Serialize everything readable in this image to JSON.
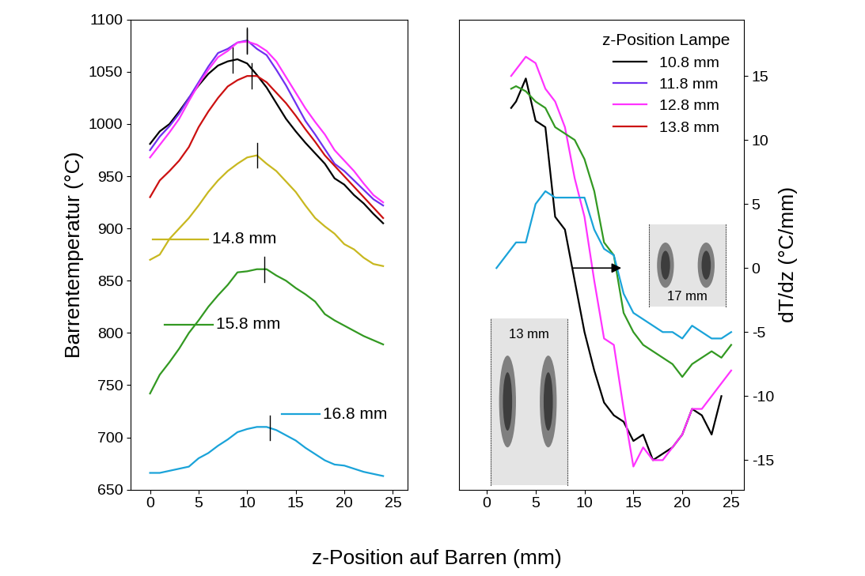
{
  "chart_data": [
    {
      "type": "line",
      "y_label": "Barrentemperatur (°C)",
      "x_label": "z-Position auf Barren (mm)",
      "legend_title": "z-Position Lampe",
      "xlim": [
        -2,
        26.5
      ],
      "ylim": [
        650,
        1100
      ],
      "xticks": [
        0,
        5,
        10,
        15,
        20,
        25
      ],
      "yticks": [
        650,
        700,
        750,
        800,
        850,
        900,
        950,
        1000,
        1050,
        1100
      ],
      "x": [
        0,
        1,
        2,
        3,
        4,
        5,
        6,
        7,
        8,
        9,
        10,
        11,
        12,
        13,
        14,
        15,
        16,
        17,
        18,
        19,
        20,
        21,
        22,
        23,
        24
      ],
      "series": [
        {
          "name": "10.8 mm",
          "color": "#000000",
          "peak": 8.5,
          "values": [
            981,
            993,
            1000,
            1012,
            1025,
            1037,
            1048,
            1056,
            1060,
            1062,
            1058,
            1047,
            1035,
            1020,
            1005,
            993,
            982,
            972,
            962,
            948,
            942,
            932,
            924,
            914,
            905
          ]
        },
        {
          "name": "11.8 mm",
          "color": "#7030f0",
          "peak": 10,
          "values": [
            975,
            988,
            998,
            1010,
            1025,
            1040,
            1055,
            1068,
            1072,
            1078,
            1080,
            1072,
            1066,
            1052,
            1037,
            1020,
            1003,
            990,
            976,
            962,
            955,
            946,
            937,
            928,
            922
          ]
        },
        {
          "name": "12.8 mm",
          "color": "#ff33ff",
          "peak": 10,
          "values": [
            968,
            980,
            992,
            1005,
            1022,
            1038,
            1052,
            1064,
            1070,
            1078,
            1079,
            1076,
            1070,
            1060,
            1045,
            1030,
            1015,
            1002,
            990,
            975,
            965,
            955,
            943,
            932,
            925
          ]
        },
        {
          "name": "13.8 mm",
          "color": "#cc1111",
          "peak": 10.5,
          "values": [
            930,
            946,
            955,
            965,
            978,
            997,
            1012,
            1025,
            1036,
            1042,
            1046,
            1046,
            1040,
            1030,
            1020,
            1008,
            995,
            983,
            970,
            960,
            950,
            940,
            930,
            920,
            910
          ]
        }
      ],
      "labeled_series": [
        {
          "name": "14.8 mm",
          "color": "#c8b820",
          "peak": 11,
          "values": [
            870,
            875,
            890,
            900,
            910,
            922,
            935,
            946,
            955,
            962,
            968,
            970,
            962,
            955,
            945,
            935,
            922,
            910,
            902,
            895,
            885,
            880,
            872,
            866,
            864
          ]
        },
        {
          "name": "15.8 mm",
          "color": "#339922",
          "peak": 11.8,
          "values": [
            742,
            760,
            772,
            785,
            800,
            812,
            825,
            836,
            846,
            858,
            859,
            861,
            861,
            855,
            850,
            843,
            837,
            830,
            818,
            812,
            807,
            802,
            797,
            793,
            789
          ]
        },
        {
          "name": "16.8 mm",
          "color": "#1aa3d9",
          "peak": 12.3,
          "values": [
            666,
            666,
            668,
            670,
            672,
            680,
            685,
            692,
            698,
            705,
            708,
            710,
            710,
            707,
            702,
            697,
            690,
            684,
            678,
            674,
            673,
            670,
            667,
            665,
            663
          ]
        }
      ]
    },
    {
      "type": "line",
      "y_label": "dT/dz (°C/mm)",
      "legend": "upper right",
      "xlim": [
        -2.8,
        26.3
      ],
      "ylim": [
        -17.3,
        19.4
      ],
      "xticks": [
        0,
        5,
        10,
        15,
        20,
        25
      ],
      "yticks": [
        -15,
        -10,
        -5,
        0,
        5,
        10,
        15
      ],
      "arrow": {
        "x": [
          8.5,
          14
        ],
        "y": 0
      },
      "insets": [
        "17 mm",
        "13 mm"
      ],
      "series": [
        {
          "color": "#000000",
          "x": [
            2.5,
            3,
            4,
            5,
            6,
            7,
            8,
            9,
            10,
            11,
            12,
            13,
            14,
            15,
            16,
            17,
            18,
            19,
            20,
            21,
            22,
            23,
            24
          ],
          "values": [
            12.5,
            13,
            14.8,
            11.5,
            11,
            4,
            3,
            -1,
            -5,
            -8,
            -10.5,
            -11.5,
            -12,
            -13.5,
            -13,
            -15,
            -14.5,
            -14,
            -13,
            -11,
            -11.5,
            -13,
            -10
          ]
        },
        {
          "color": "#ff33ff",
          "x": [
            2.5,
            3,
            4,
            5,
            6,
            7,
            8,
            9,
            10,
            11,
            12,
            13,
            14,
            15,
            16,
            17,
            18,
            19,
            20,
            21,
            22,
            23,
            24,
            25
          ],
          "values": [
            15,
            15.5,
            16.5,
            16,
            14,
            13,
            11,
            7,
            4,
            -1,
            -5.5,
            -6,
            -11,
            -15.5,
            -14,
            -15,
            -15,
            -14,
            -13,
            -11,
            -11,
            -10,
            -9,
            -8
          ]
        },
        {
          "color": "#339922",
          "x": [
            2.5,
            3,
            4,
            5,
            6,
            7,
            8,
            9,
            10,
            11,
            12,
            13,
            14,
            15,
            16,
            17,
            18,
            19,
            20,
            21,
            22,
            23,
            24,
            25
          ],
          "values": [
            14,
            14.2,
            13.8,
            13,
            12.5,
            11,
            10.5,
            10,
            8.5,
            6,
            2,
            1,
            -3.5,
            -5,
            -6,
            -6.5,
            -7,
            -7.5,
            -8.5,
            -7.5,
            -7,
            -6.5,
            -7,
            -6
          ]
        },
        {
          "color": "#1aa3d9",
          "x": [
            1,
            2,
            3,
            4,
            5,
            6,
            7,
            8,
            9,
            10,
            11,
            12,
            13,
            14,
            15,
            16,
            17,
            18,
            19,
            20,
            21,
            22,
            23,
            24,
            25
          ],
          "values": [
            0,
            1,
            2,
            2,
            5,
            6,
            5.5,
            5.5,
            5.5,
            5.5,
            3,
            1.5,
            1,
            -2,
            -3.5,
            -4,
            -4.5,
            -5,
            -5,
            -5.5,
            -4.5,
            -5,
            -5.5,
            -5.5,
            -5
          ]
        }
      ]
    }
  ]
}
